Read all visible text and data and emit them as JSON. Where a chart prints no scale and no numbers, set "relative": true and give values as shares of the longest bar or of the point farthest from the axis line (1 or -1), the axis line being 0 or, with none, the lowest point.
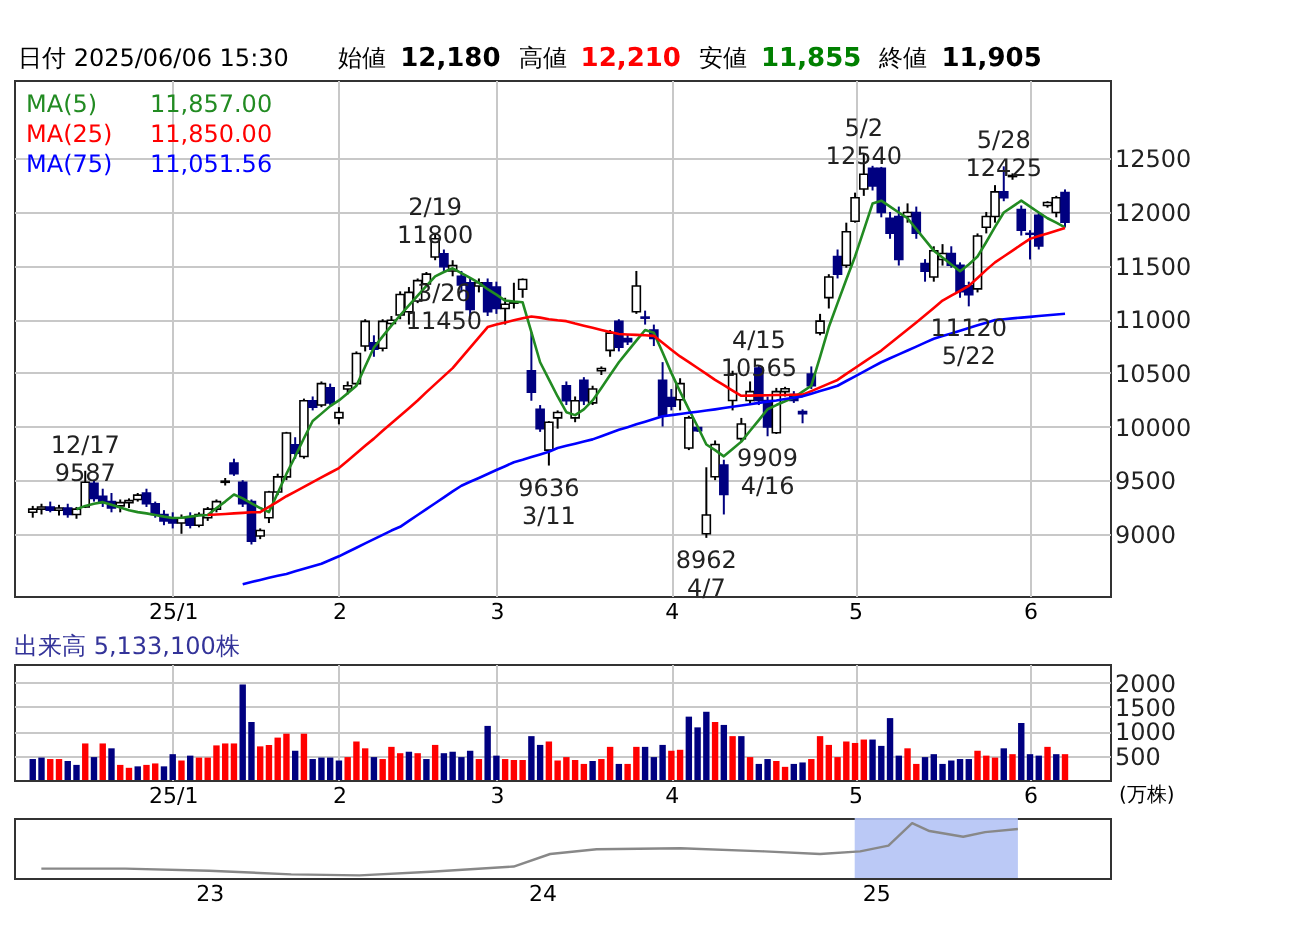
{
  "chart_data": [
    {
      "type": "candlestick",
      "title": "日付 2025/06/06 15:30",
      "annotations": [
        "始値",
        "12,180",
        "高値",
        "12,210",
        "安値",
        "11,855",
        "終値",
        "11,905",
        "11,857.00",
        "11,850.00",
        "11,051.56",
        {
          "text": "12/17\n9587",
          "y": 9587
        },
        {
          "text": "2/19\n11800",
          "y": 11800
        },
        {
          "text": "9636\n3/11",
          "y": 9636
        },
        {
          "text": "3/26\n11450",
          "y": 11450
        },
        {
          "text": "8962\n4/7",
          "y": 8962
        },
        {
          "text": "4/15\n10565",
          "y": 10565
        },
        {
          "text": "9909\n4/16",
          "y": 9909
        },
        {
          "text": "5/2\n12540",
          "y": 12540
        },
        {
          "text": "11120\n5/22",
          "y": 11120
        },
        {
          "text": "5/28\n12425",
          "y": 12425
        }
      ],
      "categories": [
        null,
        null,
        null,
        null,
        null,
        null,
        null,
        null,
        null,
        null,
        null,
        null,
        null,
        null,
        null,
        null,
        "25/1",
        null,
        null,
        null,
        null,
        null,
        null,
        null,
        null,
        null,
        null,
        null,
        null,
        null,
        null,
        null,
        null,
        null,
        null,
        "2",
        null,
        null,
        null,
        null,
        null,
        null,
        null,
        null,
        null,
        null,
        null,
        null,
        null,
        null,
        null,
        null,
        null,
        "3",
        null,
        null,
        null,
        null,
        null,
        null,
        null,
        null,
        null,
        null,
        null,
        null,
        null,
        null,
        null,
        null,
        null,
        null,
        null,
        "4",
        null,
        null,
        null,
        null,
        null,
        null,
        null,
        null,
        null,
        null,
        null,
        null,
        null,
        null,
        null,
        null,
        null,
        null,
        null,
        null,
        "5",
        null,
        null,
        null,
        null,
        null,
        null,
        null,
        null,
        null,
        null,
        null,
        null,
        null,
        null,
        null,
        null,
        null,
        null,
        null,
        "6",
        null,
        null,
        null,
        null
      ],
      "ohlc": [
        [
          9200,
          9260,
          9150,
          9230
        ],
        [
          9230,
          9280,
          9180,
          9250
        ],
        [
          9250,
          9300,
          9200,
          9220
        ],
        [
          9220,
          9270,
          9170,
          9240
        ],
        [
          9240,
          9280,
          9150,
          9180
        ],
        [
          9180,
          9250,
          9140,
          9230
        ],
        [
          9250,
          9587,
          9240,
          9480
        ],
        [
          9470,
          9500,
          9300,
          9330
        ],
        [
          9350,
          9420,
          9250,
          9290
        ],
        [
          9300,
          9380,
          9200,
          9240
        ],
        [
          9260,
          9320,
          9200,
          9290
        ],
        [
          9290,
          9330,
          9240,
          9310
        ],
        [
          9320,
          9380,
          9300,
          9360
        ],
        [
          9380,
          9420,
          9250,
          9280
        ],
        [
          9280,
          9300,
          9150,
          9180
        ],
        [
          9180,
          9220,
          9080,
          9120
        ],
        [
          9150,
          9200,
          9050,
          9100
        ],
        [
          9100,
          9180,
          9000,
          9150
        ],
        [
          9150,
          9200,
          9050,
          9080
        ],
        [
          9080,
          9200,
          9060,
          9180
        ],
        [
          9150,
          9250,
          9120,
          9230
        ],
        [
          9230,
          9320,
          9200,
          9300
        ],
        [
          9480,
          9520,
          9450,
          9490
        ],
        [
          9660,
          9700,
          9540,
          9560
        ],
        [
          9480,
          9500,
          9250,
          9280
        ],
        [
          9300,
          9320,
          8900,
          8930
        ],
        [
          8980,
          9050,
          8950,
          9030
        ],
        [
          9150,
          9400,
          9100,
          9390
        ],
        [
          9390,
          9560,
          9360,
          9530
        ],
        [
          9530,
          9950,
          9500,
          9940
        ],
        [
          9830,
          9900,
          9700,
          9750
        ],
        [
          9720,
          10260,
          9700,
          10240
        ],
        [
          10240,
          10280,
          10150,
          10180
        ],
        [
          10200,
          10420,
          10180,
          10400
        ],
        [
          10360,
          10400,
          10200,
          10220
        ],
        [
          10080,
          10180,
          10020,
          10130
        ],
        [
          10350,
          10420,
          10300,
          10380
        ],
        [
          10400,
          10700,
          10380,
          10680
        ],
        [
          10750,
          11000,
          10700,
          10980
        ],
        [
          10780,
          10850,
          10650,
          10720
        ],
        [
          10730,
          11000,
          10700,
          10980
        ],
        [
          10960,
          11030,
          10940,
          10990
        ],
        [
          11040,
          11260,
          11000,
          11230
        ],
        [
          11070,
          11300,
          10950,
          11250
        ],
        [
          11170,
          11380,
          11150,
          11360
        ],
        [
          11330,
          11440,
          11300,
          11420
        ],
        [
          11580,
          11800,
          11550,
          11750
        ],
        [
          11610,
          11650,
          11450,
          11490
        ],
        [
          11450,
          11550,
          11400,
          11500
        ],
        [
          11400,
          11450,
          11250,
          11320
        ],
        [
          11340,
          11380,
          11000,
          11090
        ],
        [
          11310,
          11380,
          11250,
          11340
        ],
        [
          11340,
          11380,
          11030,
          11070
        ],
        [
          11300,
          11350,
          11050,
          11100
        ],
        [
          11100,
          11200,
          10950,
          11140
        ],
        [
          11150,
          11340,
          11100,
          11160
        ],
        [
          11280,
          11380,
          11200,
          11370
        ],
        [
          10520,
          10880,
          10240,
          10320
        ],
        [
          10160,
          10200,
          9950,
          9980
        ],
        [
          9780,
          10050,
          9636,
          10040
        ],
        [
          10080,
          10150,
          9980,
          10130
        ],
        [
          10380,
          10420,
          10200,
          10240
        ],
        [
          10080,
          10280,
          10040,
          10240
        ],
        [
          10430,
          10460,
          10200,
          10240
        ],
        [
          10220,
          10380,
          10200,
          10350
        ],
        [
          10520,
          10560,
          10480,
          10540
        ],
        [
          10710,
          10900,
          10650,
          10870
        ],
        [
          10980,
          11000,
          10700,
          10740
        ],
        [
          10820,
          10860,
          10760,
          10790
        ],
        [
          11070,
          11450,
          11050,
          11310
        ],
        [
          11020,
          11080,
          10950,
          11010
        ],
        [
          10900,
          10950,
          10750,
          10820
        ],
        [
          10430,
          10600,
          10000,
          10100
        ],
        [
          10270,
          10350,
          10150,
          10190
        ],
        [
          10250,
          10450,
          10150,
          10400
        ],
        [
          9800,
          10100,
          9780,
          10080
        ],
        [
          9990,
          10000,
          9950,
          9960
        ],
        [
          9000,
          9620,
          8962,
          9175
        ],
        [
          9531,
          9870,
          9500,
          9832
        ],
        [
          9640,
          9690,
          9180,
          9366
        ],
        [
          10243,
          10520,
          10150,
          10489
        ],
        [
          9887,
          10080,
          9860,
          10024
        ],
        [
          10243,
          10420,
          10200,
          10325
        ],
        [
          10544,
          10565,
          10200,
          10243
        ],
        [
          10243,
          10280,
          9909,
          9996
        ],
        [
          9942,
          10360,
          9930,
          10325
        ],
        [
          10325,
          10370,
          10280,
          10352
        ],
        [
          10297,
          10330,
          10220,
          10243
        ],
        [
          10140,
          10160,
          10030,
          10120
        ],
        [
          10489,
          10560,
          10350,
          10380
        ],
        [
          10873,
          11050,
          10850,
          10982
        ],
        [
          11201,
          11420,
          11100,
          11393
        ],
        [
          11585,
          11650,
          11380,
          11420
        ],
        [
          11503,
          11900,
          11480,
          11815
        ],
        [
          11913,
          12180,
          11900,
          12132
        ],
        [
          12214,
          12540,
          12150,
          12351
        ],
        [
          12406,
          12430,
          12200,
          12242
        ],
        [
          12406,
          12420,
          11950,
          11995
        ],
        [
          11940,
          12000,
          11750,
          11803
        ],
        [
          11957,
          12050,
          11500,
          11557
        ],
        [
          11957,
          12080,
          11900,
          11995
        ],
        [
          11995,
          12050,
          11750,
          11803
        ],
        [
          11519,
          11560,
          11350,
          11448
        ],
        [
          11393,
          11680,
          11350,
          11639
        ],
        [
          11557,
          11700,
          11500,
          11612
        ],
        [
          11612,
          11680,
          11480,
          11503
        ],
        [
          11503,
          11530,
          11200,
          11256
        ],
        [
          11311,
          11350,
          11120,
          11229
        ],
        [
          11283,
          11800,
          11250,
          11776
        ],
        [
          11858,
          12000,
          11800,
          11957
        ],
        [
          11957,
          12250,
          11900,
          12187
        ],
        [
          12187,
          12425,
          12100,
          12132
        ],
        [
          12330,
          12360,
          12300,
          12340
        ],
        [
          12023,
          12060,
          11780,
          11831
        ],
        [
          11800,
          11830,
          11557,
          11792
        ],
        [
          11968,
          11990,
          11650,
          11683
        ],
        [
          12060,
          12100,
          12040,
          12088
        ],
        [
          11995,
          12150,
          11950,
          12132
        ],
        [
          12180,
          12210,
          11855,
          11905
        ]
      ],
      "series": [
        {
          "name": "MA(5)",
          "type": "line",
          "color": "#228b22",
          "values": [
            null,
            null,
            null,
            null,
            null,
            9229,
            9260,
            9280,
            9295,
            9270,
            9245,
            9220,
            9202,
            9190,
            9175,
            9160,
            9147,
            9150,
            9160,
            9170,
            9175,
            9240,
            9300,
            9366,
            9330,
            9284,
            9240,
            9202,
            9380,
            9558,
            9720,
            9890,
            10051,
            10120,
            10190,
            10243,
            10310,
            10380,
            10560,
            10736,
            10840,
            10940,
            11037,
            11130,
            11220,
            11311,
            11400,
            11440,
            11475,
            11430,
            11385,
            11339,
            11280,
            11230,
            11174,
            11165,
            11158,
            10880,
            10599,
            10440,
            10280,
            10133,
            10106,
            10160,
            10243,
            10360,
            10480,
            10599,
            10700,
            10800,
            10900,
            10873,
            10690,
            10500,
            10325,
            10160,
            10000,
            9832,
            9780,
            9722,
            9790,
            9859,
            9960,
            10060,
            10161,
            10200,
            10235,
            10270,
            10325,
            10380,
            10650,
            10927,
            11150,
            11370,
            11585,
            11830,
            12078,
            12105,
            12050,
            11995,
            11941,
            11840,
            11740,
            11639,
            11575,
            11510,
            11448,
            11510,
            11585,
            11720,
            11860,
            11995,
            12050,
            12105,
            12050,
            11995,
            11941,
            11900,
            11857
          ]
        },
        {
          "name": "MA(25)",
          "type": "line",
          "color": "#ff0000",
          "values": [
            null,
            null,
            null,
            null,
            null,
            null,
            null,
            null,
            null,
            null,
            null,
            null,
            null,
            null,
            null,
            null,
            null,
            null,
            null,
            null,
            9175,
            9180,
            9185,
            9190,
            9195,
            9200,
            9202,
            9250,
            9300,
            9350,
            9393,
            9437,
            9481,
            9525,
            9569,
            9613,
            9680,
            9750,
            9820,
            9887,
            9960,
            10030,
            10100,
            10170,
            10243,
            10320,
            10395,
            10470,
            10544,
            10640,
            10735,
            10830,
            10927,
            10950,
            10970,
            10990,
            11010,
            11026,
            11015,
            11000,
            10990,
            10982,
            10960,
            10940,
            10920,
            10900,
            10880,
            10862,
            10858,
            10854,
            10850,
            10845,
            10780,
            10715,
            10653,
            10600,
            10545,
            10490,
            10434,
            10385,
            10335,
            10286,
            10288,
            10290,
            10291,
            10293,
            10294,
            10296,
            10297,
            10330,
            10365,
            10400,
            10434,
            10490,
            10545,
            10600,
            10655,
            10708,
            10774,
            10840,
            10905,
            10970,
            11037,
            11105,
            11174,
            11220,
            11265,
            11311,
            11385,
            11460,
            11530,
            11585,
            11640,
            11695,
            11749,
            11775,
            11800,
            11825,
            11850
          ]
        },
        {
          "name": "MA(75)",
          "type": "line",
          "color": "#0000ff",
          "values": [
            null,
            null,
            null,
            null,
            null,
            null,
            null,
            null,
            null,
            null,
            null,
            null,
            null,
            null,
            null,
            null,
            null,
            null,
            null,
            null,
            null,
            null,
            null,
            null,
            8529,
            8550,
            8570,
            8590,
            8608,
            8626,
            8650,
            8673,
            8697,
            8720,
            8755,
            8790,
            8830,
            8870,
            8910,
            8950,
            8990,
            9030,
            9065,
            9120,
            9175,
            9230,
            9285,
            9340,
            9395,
            9448,
            9485,
            9520,
            9557,
            9594,
            9630,
            9667,
            9690,
            9715,
            9740,
            9765,
            9800,
            9820,
            9840,
            9860,
            9880,
            9910,
            9940,
            9969,
            9994,
            10020,
            10045,
            10070,
            10095,
            10106,
            10117,
            10128,
            10138,
            10149,
            10160,
            10172,
            10184,
            10196,
            10208,
            10220,
            10232,
            10243,
            10256,
            10268,
            10281,
            10306,
            10330,
            10355,
            10380,
            10424,
            10468,
            10511,
            10555,
            10599,
            10636,
            10672,
            10709,
            10745,
            10782,
            10818,
            10843,
            10868,
            10893,
            10918,
            10943,
            10968,
            10993,
            11000,
            11008,
            11015,
            11022,
            11030,
            11037,
            11044,
            11051
          ]
        }
      ],
      "ylim": [
        8420,
        13230
      ],
      "yticks": [
        9000,
        9500,
        10000,
        10500,
        11000,
        11500,
        12000,
        12500
      ],
      "grid": true,
      "legend": "top left"
    },
    {
      "type": "bar",
      "title": "出来高  5,133,100株",
      "ylabel": "(万株)",
      "categories": [
        null,
        null,
        null,
        null,
        null,
        null,
        null,
        null,
        null,
        null,
        null,
        null,
        null,
        null,
        null,
        null,
        "25/1",
        null,
        null,
        null,
        null,
        null,
        null,
        null,
        null,
        null,
        null,
        null,
        null,
        null,
        null,
        null,
        null,
        null,
        null,
        "2",
        null,
        null,
        null,
        null,
        null,
        null,
        null,
        null,
        null,
        null,
        null,
        null,
        null,
        null,
        null,
        null,
        null,
        "3",
        null,
        null,
        null,
        null,
        null,
        null,
        null,
        null,
        null,
        null,
        null,
        null,
        null,
        null,
        null,
        null,
        null,
        null,
        null,
        "4",
        null,
        null,
        null,
        null,
        null,
        null,
        null,
        null,
        null,
        null,
        null,
        null,
        null,
        null,
        null,
        null,
        null,
        null,
        null,
        null,
        "5",
        null,
        null,
        null,
        null,
        null,
        null,
        null,
        null,
        null,
        null,
        null,
        null,
        null,
        null,
        null,
        null,
        null,
        null,
        null,
        "6",
        null,
        null,
        null,
        null
      ],
      "values": [
        430,
        460,
        430,
        430,
        390,
        310,
        750,
        470,
        750,
        650,
        310,
        250,
        280,
        310,
        340,
        280,
        530,
        400,
        500,
        460,
        460,
        710,
        750,
        750,
        1960,
        1190,
        690,
        720,
        870,
        950,
        600,
        950,
        430,
        460,
        460,
        400,
        470,
        790,
        650,
        470,
        430,
        680,
        550,
        580,
        550,
        430,
        720,
        550,
        580,
        470,
        600,
        430,
        1110,
        500,
        430,
        410,
        410,
        900,
        720,
        790,
        400,
        470,
        410,
        330,
        390,
        430,
        680,
        330,
        330,
        680,
        680,
        470,
        720,
        600,
        620,
        1300,
        1080,
        1400,
        1190,
        1130,
        900,
        900,
        470,
        330,
        430,
        390,
        270,
        330,
        360,
        430,
        900,
        720,
        470,
        790,
        760,
        830,
        830,
        700,
        1270,
        500,
        650,
        330,
        470,
        530,
        330,
        400,
        430,
        430,
        600,
        500,
        460,
        650,
        530,
        1170,
        530,
        500,
        680,
        530,
        530
      ],
      "colors": [
        "#000080",
        "#000080",
        "#ff0000",
        "#ff0000",
        "#000080",
        "#000080",
        "#ff0000",
        "#000080",
        "#ff0000",
        "#000080",
        "#ff0000",
        "#ff0000",
        "#000080",
        "#ff0000",
        "#ff0000",
        "#000080",
        "#000080",
        "#ff0000",
        "#000080",
        "#ff0000",
        "#ff0000",
        "#ff0000",
        "#ff0000",
        "#ff0000",
        "#000080",
        "#000080",
        "#ff0000",
        "#ff0000",
        "#ff0000",
        "#ff0000",
        "#000080",
        "#ff0000",
        "#000080",
        "#000080",
        "#000080",
        "#000080",
        "#ff0000",
        "#ff0000",
        "#ff0000",
        "#000080",
        "#ff0000",
        "#ff0000",
        "#ff0000",
        "#000080",
        "#ff0000",
        "#000080",
        "#ff0000",
        "#000080",
        "#000080",
        "#000080",
        "#000080",
        "#ff0000",
        "#000080",
        "#000080",
        "#ff0000",
        "#ff0000",
        "#ff0000",
        "#000080",
        "#000080",
        "#ff0000",
        "#ff0000",
        "#ff0000",
        "#ff0000",
        "#ff0000",
        "#000080",
        "#ff0000",
        "#ff0000",
        "#000080",
        "#ff0000",
        "#ff0000",
        "#000080",
        "#000080",
        "#000080",
        "#ff0000",
        "#ff0000",
        "#000080",
        "#000080",
        "#000080",
        "#ff0000",
        "#000080",
        "#ff0000",
        "#000080",
        "#ff0000",
        "#000080",
        "#000080",
        "#ff0000",
        "#ff0000",
        "#000080",
        "#000080",
        "#ff0000",
        "#ff0000",
        "#ff0000",
        "#ff0000",
        "#ff0000",
        "#ff0000",
        "#ff0000",
        "#000080",
        "#000080",
        "#000080",
        "#000080",
        "#ff0000",
        "#ff0000",
        "#000080",
        "#000080",
        "#000080",
        "#000080",
        "#000080",
        "#000080",
        "#ff0000",
        "#ff0000",
        "#ff0000",
        "#000080",
        "#ff0000",
        "#000080",
        "#000080",
        "#000080",
        "#ff0000",
        "#000080",
        "#ff0000"
      ],
      "ylim": [
        0,
        2380
      ],
      "yticks": [
        500,
        1000,
        1500,
        2000
      ],
      "grid": true
    },
    {
      "type": "line",
      "relative": true,
      "x": [
        "2022-07-01",
        "2022-10-01",
        "2023-01-01",
        "2023-04-01",
        "2023-06-15",
        "2023-09-01",
        "2023-12-01",
        "2024-01-10",
        "2024-03-01",
        "2024-06-01",
        "2024-09-01",
        "2024-11-01",
        "2024-12-15",
        "2025-01-15",
        "2025-02-10",
        "2025-03-01",
        "2025-04-07",
        "2025-05-01",
        "2025-06-06"
      ],
      "series": [
        {
          "color": "#888888",
          "values": [
            0.13,
            0.13,
            0.09,
            0.02,
            0,
            0.07,
            0.17,
            0.41,
            0.5,
            0.52,
            0.46,
            0.41,
            0.46,
            0.57,
            1,
            0.85,
            0.74,
            0.83,
            0.89
          ]
        }
      ],
      "xlim": [
        "2022-06-01",
        "2025-09-15"
      ],
      "xticks": [
        {
          "value": "2023-01-01",
          "label": "23"
        },
        {
          "value": "2024-01-01",
          "label": "24"
        },
        {
          "value": "2025-01-01",
          "label": "25"
        }
      ],
      "bands": [
        {
          "axis": "x",
          "from": "2024-12-09",
          "to": "2025-06-06",
          "color": "#b4c3f5"
        }
      ]
    }
  ]
}
